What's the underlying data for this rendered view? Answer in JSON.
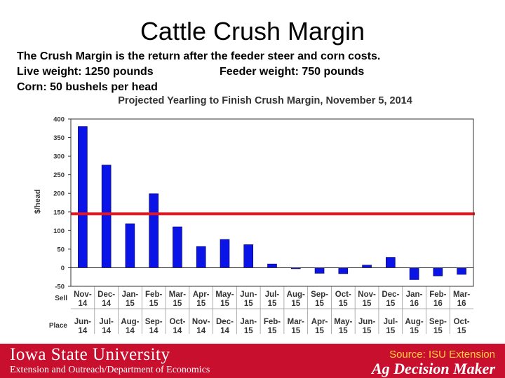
{
  "slide": {
    "title": "Cattle Crush Margin",
    "description_line1": "The Crush Margin is the return after the feeder steer and corn costs.",
    "description_live_weight": "Live weight:  1250 pounds",
    "description_feeder_weight": "Feeder weight:  750 pounds",
    "description_line3": "Corn:  50 bushels per head"
  },
  "footer": {
    "university": "Iowa State University",
    "extension": "Extension and Outreach/Department of Economics",
    "source": "Source: ISU Extension",
    "brand": "Ag Decision Maker"
  },
  "colors": {
    "bar": "#0a14e6",
    "reference_line": "#e8141e",
    "footer_bg": "#c8102e"
  },
  "chart_data": {
    "type": "bar",
    "title": "Projected Yearling to Finish Crush Margin, November 5, 2014",
    "ylabel": "$/head",
    "ylim": [
      -50,
      400
    ],
    "yticks": [
      400,
      350,
      300,
      250,
      200,
      150,
      100,
      50,
      0,
      -50
    ],
    "sell_label": "Sell",
    "place_label": "Place",
    "sell_months": [
      [
        "Nov-",
        "14"
      ],
      [
        "Dec-",
        "14"
      ],
      [
        "Jan-",
        "15"
      ],
      [
        "Feb-",
        "15"
      ],
      [
        "Mar-",
        "15"
      ],
      [
        "Apr-",
        "15"
      ],
      [
        "May-",
        "15"
      ],
      [
        "Jun-",
        "15"
      ],
      [
        "Jul-",
        "15"
      ],
      [
        "Aug-",
        "15"
      ],
      [
        "Sep-",
        "15"
      ],
      [
        "Oct-",
        "15"
      ],
      [
        "Nov-",
        "15"
      ],
      [
        "Dec-",
        "15"
      ],
      [
        "Jan-",
        "16"
      ],
      [
        "Feb-",
        "16"
      ],
      [
        "Mar-",
        "16"
      ]
    ],
    "place_months": [
      [
        "Jun-",
        "14"
      ],
      [
        "Jul-",
        "14"
      ],
      [
        "Aug-",
        "14"
      ],
      [
        "Sep-",
        "14"
      ],
      [
        "Oct-",
        "14"
      ],
      [
        "Nov-",
        "14"
      ],
      [
        "Dec-",
        "14"
      ],
      [
        "Jan-",
        "15"
      ],
      [
        "Feb-",
        "15"
      ],
      [
        "Mar-",
        "15"
      ],
      [
        "Apr-",
        "15"
      ],
      [
        "May-",
        "15"
      ],
      [
        "Jun-",
        "15"
      ],
      [
        "Jul-",
        "15"
      ],
      [
        "Aug-",
        "15"
      ],
      [
        "Sep-",
        "15"
      ],
      [
        "Oct-",
        "15"
      ]
    ],
    "values": [
      380,
      276,
      118,
      199,
      110,
      57,
      76,
      62,
      10,
      -2,
      -15,
      -16,
      7,
      28,
      -32,
      -22,
      -18
    ],
    "reference_line_value": 145,
    "grid": false
  }
}
